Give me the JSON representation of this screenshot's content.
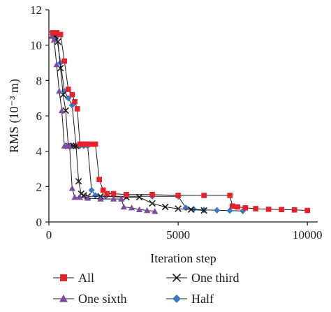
{
  "colors": {
    "all": "#e8202a",
    "one_third": "#1a1a1a",
    "one_sixth": "#7d4ba6",
    "half": "#3a78c8",
    "axis": "#1a1a1a"
  },
  "chart_data": {
    "type": "line",
    "xlabel": "Iteration step",
    "ylabel": "RMS (10⁻³ m)",
    "xlim": [
      0,
      10400
    ],
    "ylim": [
      0,
      12
    ],
    "xticks": [
      0,
      5000,
      10000
    ],
    "yticks": [
      0,
      2,
      4,
      6,
      8,
      10,
      12
    ],
    "grid": false,
    "legend_position": "bottom",
    "series": [
      {
        "name": "All",
        "marker": "square",
        "color": "#e8202a",
        "x": [
          150,
          300,
          450,
          600,
          750,
          900,
          1000,
          1100,
          1200,
          1300,
          1400,
          1500,
          1650,
          1800,
          1950,
          2100,
          2250,
          2500,
          3000,
          4000,
          5000,
          6000,
          7000,
          7100,
          7300,
          7600,
          8000,
          8500,
          9000,
          9500,
          10000
        ],
        "y": [
          10.7,
          10.7,
          10.6,
          9.1,
          7.5,
          7.2,
          6.8,
          6.4,
          4.4,
          4.4,
          4.4,
          4.4,
          4.4,
          4.4,
          2.4,
          1.8,
          1.6,
          1.6,
          1.55,
          1.55,
          1.5,
          1.5,
          1.5,
          0.9,
          0.85,
          0.8,
          0.75,
          0.72,
          0.7,
          0.68,
          0.65
        ]
      },
      {
        "name": "One third",
        "marker": "cross",
        "color": "#1a1a1a",
        "x": [
          150,
          250,
          350,
          450,
          550,
          650,
          750,
          850,
          950,
          1050,
          1150,
          1250,
          1350,
          1500,
          2000,
          3000,
          3500,
          4000,
          4500,
          5000,
          5500,
          6000
        ],
        "y": [
          10.6,
          10.5,
          10.2,
          8.7,
          7.2,
          6.3,
          4.3,
          4.3,
          4.3,
          4.3,
          2.3,
          1.6,
          1.5,
          1.45,
          1.45,
          1.4,
          1.4,
          1.05,
          0.85,
          0.75,
          0.7,
          0.65
        ]
      },
      {
        "name": "One sixth",
        "marker": "triangle",
        "color": "#7d4ba6",
        "x": [
          120,
          200,
          300,
          400,
          500,
          600,
          700,
          800,
          900,
          1000,
          1200,
          1500,
          2000,
          2500,
          2800,
          2900,
          3200,
          3500,
          3800,
          4100
        ],
        "y": [
          10.5,
          10.3,
          8.9,
          7.4,
          6.3,
          4.3,
          4.3,
          4.3,
          1.9,
          1.4,
          1.4,
          1.35,
          1.3,
          1.3,
          1.3,
          0.85,
          0.8,
          0.7,
          0.65,
          0.6
        ]
      },
      {
        "name": "Half",
        "marker": "diamond",
        "color": "#3a78c8",
        "x": [
          150,
          300,
          450,
          600,
          750,
          900,
          1050,
          1200,
          1350,
          1500,
          1650,
          1800,
          2200,
          3000,
          4000,
          5000,
          5300,
          5600,
          6000,
          6500,
          7000,
          7500
        ],
        "y": [
          10.6,
          10.5,
          9.0,
          7.4,
          7.0,
          6.6,
          4.3,
          4.3,
          4.3,
          4.3,
          1.8,
          1.5,
          1.45,
          1.45,
          1.45,
          1.45,
          0.8,
          0.72,
          0.68,
          0.66,
          0.64,
          0.62
        ]
      }
    ]
  }
}
